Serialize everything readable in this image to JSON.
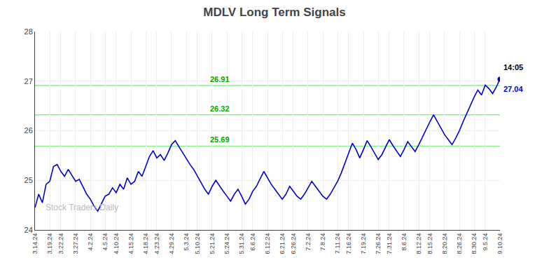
{
  "chart_data": {
    "type": "line",
    "title": "MDLV Long Term Signals",
    "color": "#0000cc",
    "grid": true,
    "ylim": [
      24,
      28
    ],
    "yticks": [
      24,
      25,
      26,
      27,
      28
    ],
    "categories": [
      "3.14.24",
      null,
      null,
      null,
      "3.19.24",
      null,
      null,
      "3.22.24",
      null,
      null,
      null,
      "3.27.24",
      null,
      null,
      null,
      "4.2.24",
      null,
      null,
      null,
      "4.5.24",
      null,
      null,
      "4.10.24",
      null,
      null,
      null,
      "4.15.24",
      null,
      null,
      null,
      "4.18.24",
      null,
      null,
      "4.23.24",
      null,
      null,
      null,
      "4.29.24",
      null,
      null,
      null,
      "5.3.24",
      null,
      null,
      "5.10.24",
      null,
      null,
      null,
      "5.21.24",
      null,
      null,
      null,
      "5.24.24",
      null,
      null,
      null,
      "5.31.24",
      null,
      null,
      "6.6.24",
      null,
      null,
      null,
      "6.12.24",
      null,
      null,
      null,
      "6.21.24",
      null,
      null,
      "6.26.24",
      null,
      null,
      null,
      "7.2.24",
      null,
      null,
      null,
      "7.8.24",
      null,
      null,
      null,
      "7.11.24",
      null,
      null,
      "7.16.24",
      null,
      null,
      null,
      "7.19.24",
      null,
      null,
      null,
      "7.26.24",
      null,
      null,
      "7.31.24",
      null,
      null,
      null,
      "8.6.24",
      null,
      null,
      null,
      "8.12.24",
      null,
      null,
      "8.15.24",
      null,
      null,
      null,
      "8.20.24",
      null,
      null,
      null,
      "8.26.24",
      null,
      null,
      null,
      "8.30.24",
      null,
      null,
      "9.5.24",
      null,
      null,
      null,
      "9.10.24"
    ],
    "values": [
      24.45,
      24.72,
      24.55,
      24.92,
      24.98,
      25.28,
      25.32,
      25.18,
      25.08,
      25.22,
      25.1,
      24.98,
      25.02,
      24.88,
      24.72,
      24.62,
      24.48,
      24.38,
      24.52,
      24.68,
      24.72,
      24.85,
      24.75,
      24.92,
      24.82,
      25.05,
      24.92,
      24.98,
      25.18,
      25.08,
      25.28,
      25.48,
      25.6,
      25.45,
      25.52,
      25.4,
      25.55,
      25.72,
      25.8,
      25.68,
      25.55,
      25.42,
      25.32,
      25.22,
      25.08,
      24.95,
      24.82,
      24.72,
      24.88,
      25.0,
      24.88,
      24.78,
      24.68,
      24.58,
      24.72,
      24.82,
      24.68,
      24.52,
      24.62,
      24.78,
      24.88,
      25.02,
      25.18,
      25.05,
      24.92,
      24.82,
      24.72,
      24.62,
      24.72,
      24.88,
      24.78,
      24.68,
      24.62,
      24.72,
      24.85,
      24.98,
      24.88,
      24.78,
      24.68,
      24.62,
      24.72,
      24.85,
      24.98,
      25.15,
      25.35,
      25.55,
      25.75,
      25.62,
      25.45,
      25.62,
      25.8,
      25.68,
      25.55,
      25.42,
      25.52,
      25.68,
      25.82,
      25.7,
      25.58,
      25.48,
      25.62,
      25.78,
      25.68,
      25.58,
      25.72,
      25.88,
      26.02,
      26.18,
      26.32,
      26.18,
      26.05,
      25.92,
      25.82,
      25.72,
      25.85,
      26.0,
      26.18,
      26.35,
      26.52,
      26.68,
      26.82,
      26.72,
      26.92,
      26.85,
      26.75,
      26.88,
      27.04
    ],
    "horizontal_lines": [
      {
        "y": 25.69,
        "label": "25.69",
        "color": "#88ee88"
      },
      {
        "y": 26.32,
        "label": "26.32",
        "color": "#88ee88"
      },
      {
        "y": 26.91,
        "label": "26.91",
        "color": "#88ee88"
      }
    ],
    "last_price_label": "14:05",
    "last_price_value": "27.04",
    "last_price_color": "#0000cc",
    "watermark": {
      "text": "Stock Traders Daily",
      "color": "#bbbbbb"
    }
  }
}
